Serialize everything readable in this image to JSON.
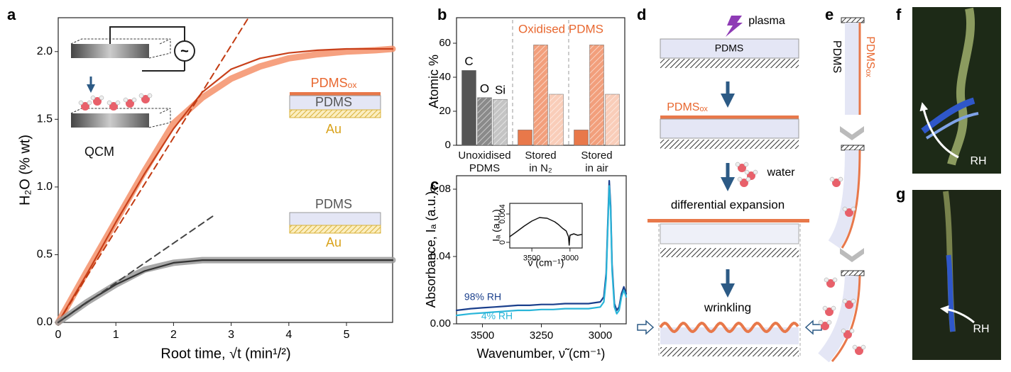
{
  "chart_data": [
    {
      "type": "line",
      "x_label": "Root time, √t (min¹/²)",
      "y_label": "H₂O (% wt)",
      "xlim": [
        0,
        5.8
      ],
      "xticks": [
        0,
        1,
        2,
        3,
        4,
        5
      ],
      "ylim": [
        0,
        2.25
      ],
      "yticks": [
        {
          "value": 0,
          "label": "0.0"
        },
        0.5,
        {
          "value": 1,
          "label": "1.0"
        },
        1.5,
        {
          "value": 2,
          "label": "2.0"
        }
      ],
      "series": [
        {
          "color": "#f4906a",
          "style": "band",
          "x": [
            0,
            0.5,
            1,
            1.5,
            2,
            2.5,
            3,
            3.5,
            4,
            4.5,
            5,
            5.5,
            5.8
          ],
          "values": [
            0,
            0.38,
            0.75,
            1.12,
            1.47,
            1.66,
            1.8,
            1.89,
            1.95,
            1.98,
            2.0,
            2.01,
            2.02
          ]
        },
        {
          "color": "#c8401a",
          "style": "line",
          "x": [
            0,
            0.5,
            1,
            1.5,
            2,
            2.5,
            3,
            3.5,
            4,
            4.5,
            5,
            5.5,
            5.8
          ],
          "values": [
            0,
            0.36,
            0.74,
            1.1,
            1.43,
            1.7,
            1.87,
            1.95,
            1.99,
            2.01,
            2.02,
            2.02,
            2.02
          ]
        },
        {
          "color": "#c23b12",
          "style": "dashed",
          "x": [
            0,
            3.3
          ],
          "values": [
            0,
            2.25
          ]
        },
        {
          "color": "#9a9a9a",
          "style": "band",
          "x": [
            0,
            0.5,
            1,
            1.5,
            2,
            2.5,
            3,
            4,
            5,
            5.8
          ],
          "values": [
            0,
            0.15,
            0.28,
            0.39,
            0.44,
            0.46,
            0.46,
            0.46,
            0.46,
            0.46
          ]
        },
        {
          "color": "#333333",
          "style": "line",
          "x": [
            0,
            0.5,
            1,
            1.5,
            2,
            2.5,
            3,
            4,
            5,
            5.8
          ],
          "values": [
            0,
            0.15,
            0.28,
            0.38,
            0.44,
            0.46,
            0.46,
            0.46,
            0.46,
            0.46
          ]
        },
        {
          "color": "#444444",
          "style": "dashed",
          "x": [
            0,
            2.7
          ],
          "values": [
            0,
            0.79
          ]
        }
      ],
      "annotations": [
        "PDMSₒₓ",
        "PDMS",
        "Au",
        "PDMS",
        "Au",
        "QCM"
      ]
    },
    {
      "type": "bar",
      "y_label": "Atomic %",
      "ylim": [
        0,
        75
      ],
      "yticks": [
        0,
        20,
        40,
        60
      ],
      "categories": [
        "Unoxidised PDMS",
        "Stored in N₂",
        "Stored in air"
      ],
      "series": [
        {
          "name": "C",
          "hatch": false,
          "colors": [
            "#555555",
            "#e8784a",
            "#e8784a"
          ],
          "values": [
            44,
            9,
            9
          ]
        },
        {
          "name": "O",
          "hatch": true,
          "colors": [
            "#8a8a8a",
            "#f29f7c",
            "#f29f7c"
          ],
          "values": [
            28,
            59,
            59
          ]
        },
        {
          "name": "Si",
          "hatch": true,
          "colors": [
            "#c4c4c4",
            "#f9cdb9",
            "#f9cdb9"
          ],
          "values": [
            27,
            30,
            30
          ]
        }
      ],
      "annotation": "Oxidised PDMS"
    },
    {
      "type": "line",
      "x_label": "Wavenumber, ν̃ (cm⁻¹)",
      "y_label": "Absorbance, Iₐ (a.u.)",
      "xlim": [
        3610,
        2890
      ],
      "xticks": [
        3500,
        3250,
        3000
      ],
      "ylim": [
        0,
        0.088
      ],
      "yticks": [
        {
          "value": 0,
          "label": "0.00"
        },
        0.04,
        {
          "value": 0.08,
          "label": "0.08"
        }
      ],
      "series": [
        {
          "name": "98% RH",
          "color": "#1a3f8c",
          "style": "line",
          "x": [
            3610,
            3550,
            3500,
            3450,
            3400,
            3350,
            3300,
            3250,
            3200,
            3150,
            3100,
            3050,
            3000,
            2985,
            2975,
            2968,
            2962,
            2956,
            2950,
            2940,
            2930,
            2920,
            2910,
            2900,
            2890
          ],
          "values": [
            0.008,
            0.009,
            0.0095,
            0.01,
            0.0105,
            0.011,
            0.011,
            0.0115,
            0.0115,
            0.012,
            0.012,
            0.012,
            0.013,
            0.016,
            0.03,
            0.06,
            0.085,
            0.07,
            0.035,
            0.012,
            0.008,
            0.01,
            0.018,
            0.022,
            0.018
          ]
        },
        {
          "name": "4% RH",
          "color": "#29b5d9",
          "style": "line",
          "x": [
            3610,
            3550,
            3500,
            3450,
            3400,
            3350,
            3300,
            3250,
            3200,
            3150,
            3100,
            3050,
            3000,
            2985,
            2975,
            2968,
            2962,
            2956,
            2950,
            2940,
            2930,
            2920,
            2910,
            2900,
            2890
          ],
          "values": [
            0.005,
            0.006,
            0.0065,
            0.007,
            0.0075,
            0.008,
            0.008,
            0.0085,
            0.0085,
            0.009,
            0.009,
            0.009,
            0.01,
            0.013,
            0.027,
            0.057,
            0.082,
            0.067,
            0.032,
            0.01,
            0.006,
            0.008,
            0.016,
            0.02,
            0.016
          ]
        }
      ]
    },
    {
      "type": "line",
      "x_label": "ν̃ (cm⁻¹)",
      "y_label": "Iₐ (a.u.)",
      "xlim": [
        3790,
        2840
      ],
      "xticks": [
        3500,
        3000
      ],
      "ylim": [
        -0.0008,
        0.0055
      ],
      "yticks": [
        0,
        0.004
      ],
      "series": [
        {
          "color": "#111111",
          "style": "thin",
          "x": [
            3790,
            3700,
            3600,
            3500,
            3400,
            3300,
            3200,
            3150,
            3100,
            3050,
            3020,
            3010,
            3000,
            2950,
            2900,
            2850
          ],
          "values": [
            0.0008,
            0.0015,
            0.0023,
            0.003,
            0.0035,
            0.0034,
            0.0029,
            0.0025,
            0.002,
            0.0016,
            0.0008,
            -0.0004,
            0.001,
            0.0012,
            0.001,
            0.0011
          ]
        }
      ]
    }
  ],
  "panel_labels": [
    "a",
    "b",
    "c",
    "d",
    "e",
    "f",
    "g"
  ],
  "diagram_d": {
    "plasma": "plasma",
    "pdms": "PDMS",
    "pdms_ox": "PDMSₒₓ",
    "water": "water",
    "expansion": "differential expansion",
    "wrinkling": "wrinkling"
  },
  "diagram_e": {
    "pdms": "PDMS",
    "pdms_ox": "PDMSₒₓ"
  },
  "photos": {
    "f_label": "RH",
    "g_label": "RH"
  }
}
